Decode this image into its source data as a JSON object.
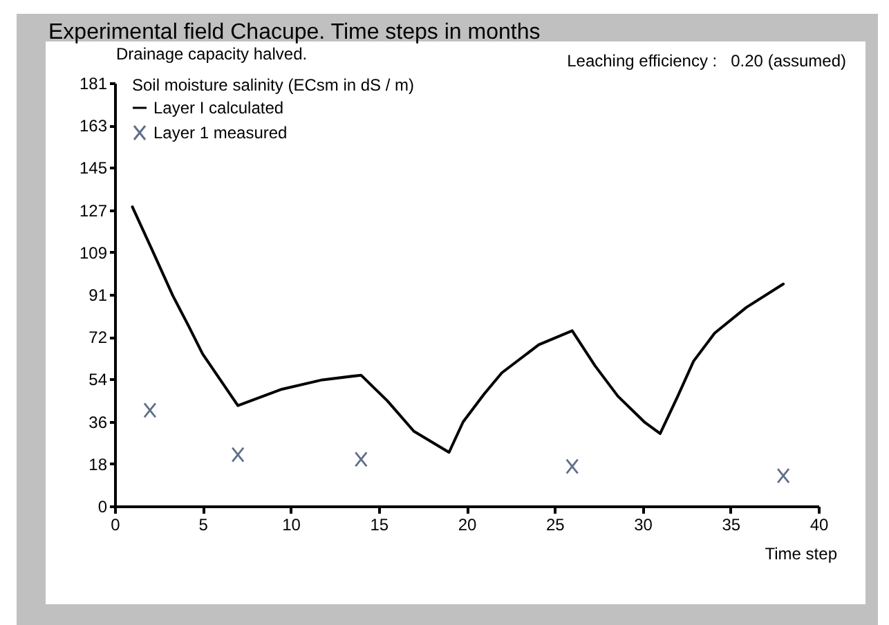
{
  "chart_data": {
    "type": "line",
    "title": "Experimental field Chacupe. Time steps in months",
    "xlabel": "Time step",
    "ylabel": "Soil moisture salinity (ECsm in dS / m)",
    "annotations": [
      "Drainage capacity halved.",
      "Leaching efficiency :   0.20 (assumed)"
    ],
    "series": [
      {
        "name": "Layer I calculated",
        "type": "line",
        "color": "#000000",
        "x": [
          1,
          2.1,
          3.3,
          4.2,
          5,
          6,
          7,
          9.5,
          11.8,
          14,
          15.5,
          17,
          19,
          19.8,
          21,
          22,
          24.1,
          26,
          27.3,
          28.6,
          30.1,
          31,
          32,
          32.9,
          34.1,
          35.9,
          38
        ],
        "values": [
          128,
          110,
          90,
          77,
          65,
          54,
          43,
          50,
          54,
          56,
          45,
          32,
          23,
          36,
          48,
          57,
          69,
          75,
          60,
          47,
          36,
          31,
          47,
          62,
          74,
          85,
          95
        ]
      },
      {
        "name": "Layer 1 measured",
        "type": "scatter",
        "marker": "cross",
        "color": "#5f6f88",
        "x": [
          2,
          7,
          14,
          26,
          38
        ],
        "values": [
          41,
          22,
          20,
          17,
          13
        ]
      }
    ],
    "xlim": [
      0,
      40
    ],
    "xticks": [
      0,
      5,
      10,
      15,
      20,
      25,
      30,
      35,
      40
    ],
    "ylim": [
      0,
      181
    ],
    "yticks": [
      0,
      {
        "value": 18.1,
        "label": "18"
      },
      {
        "value": 36.2,
        "label": "36"
      },
      {
        "value": 54.3,
        "label": "54"
      },
      {
        "value": 72.4,
        "label": "72"
      },
      {
        "value": 90.5,
        "label": "91"
      },
      {
        "value": 108.6,
        "label": "109"
      },
      {
        "value": 126.7,
        "label": "127"
      },
      {
        "value": 144.8,
        "label": "145"
      },
      {
        "value": 162.9,
        "label": "163"
      },
      181
    ],
    "legend": "top left"
  }
}
